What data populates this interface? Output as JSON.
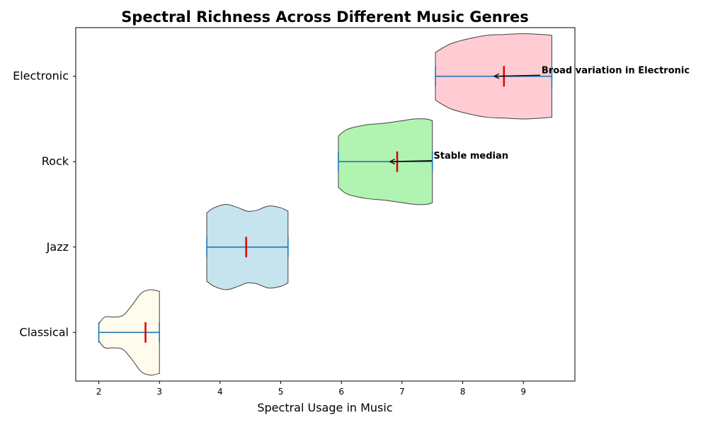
{
  "chart_data": {
    "type": "violin",
    "title": "Spectral Richness Across Different Music Genres",
    "xlabel": "Spectral Usage in Music",
    "ylabel": "",
    "xlim": [
      1.62,
      9.85
    ],
    "xticks": [
      2,
      3,
      4,
      5,
      6,
      7,
      8,
      9
    ],
    "categories": [
      "Classical",
      "Jazz",
      "Rock",
      "Electronic"
    ],
    "grid": false,
    "orientation": "horizontal",
    "series": [
      {
        "category": "Classical",
        "min": 2.0,
        "max": 3.0,
        "median": 2.77,
        "fill": "#fffbe6",
        "profile": [
          [
            2.0,
            0.1
          ],
          [
            2.1,
            0.18
          ],
          [
            2.25,
            0.18
          ],
          [
            2.4,
            0.2
          ],
          [
            2.55,
            0.32
          ],
          [
            2.7,
            0.46
          ],
          [
            2.85,
            0.5
          ],
          [
            3.0,
            0.48
          ]
        ]
      },
      {
        "category": "Jazz",
        "min": 3.78,
        "max": 5.12,
        "median": 4.43,
        "fill": "#add8e6",
        "profile": [
          [
            3.78,
            0.4
          ],
          [
            3.9,
            0.46
          ],
          [
            4.1,
            0.5
          ],
          [
            4.3,
            0.46
          ],
          [
            4.45,
            0.42
          ],
          [
            4.6,
            0.43
          ],
          [
            4.8,
            0.48
          ],
          [
            5.0,
            0.46
          ],
          [
            5.12,
            0.42
          ]
        ]
      },
      {
        "category": "Rock",
        "min": 5.95,
        "max": 7.5,
        "median": 6.92,
        "fill": "#90ee90",
        "profile": [
          [
            5.95,
            0.3
          ],
          [
            6.1,
            0.38
          ],
          [
            6.4,
            0.43
          ],
          [
            6.7,
            0.45
          ],
          [
            7.0,
            0.48
          ],
          [
            7.2,
            0.5
          ],
          [
            7.4,
            0.5
          ],
          [
            7.5,
            0.48
          ]
        ]
      },
      {
        "category": "Electronic",
        "min": 7.55,
        "max": 9.47,
        "median": 8.68,
        "fill": "#ffb6c1",
        "profile": [
          [
            7.55,
            0.28
          ],
          [
            7.8,
            0.38
          ],
          [
            8.1,
            0.44
          ],
          [
            8.4,
            0.48
          ],
          [
            8.7,
            0.49
          ],
          [
            9.0,
            0.5
          ],
          [
            9.3,
            0.49
          ],
          [
            9.47,
            0.48
          ]
        ]
      }
    ],
    "colors": {
      "median": "#e00000",
      "extrema": "#1f77b4",
      "outline": "#404040",
      "arrow": "#000000"
    },
    "annotations": [
      {
        "text": "Stable median",
        "target_category": "Rock",
        "target_x": 6.8,
        "text_x": 7.52
      },
      {
        "text": "Broad variation in Electronic",
        "target_category": "Electronic",
        "target_x": 8.52,
        "text_x": 9.3
      }
    ]
  }
}
